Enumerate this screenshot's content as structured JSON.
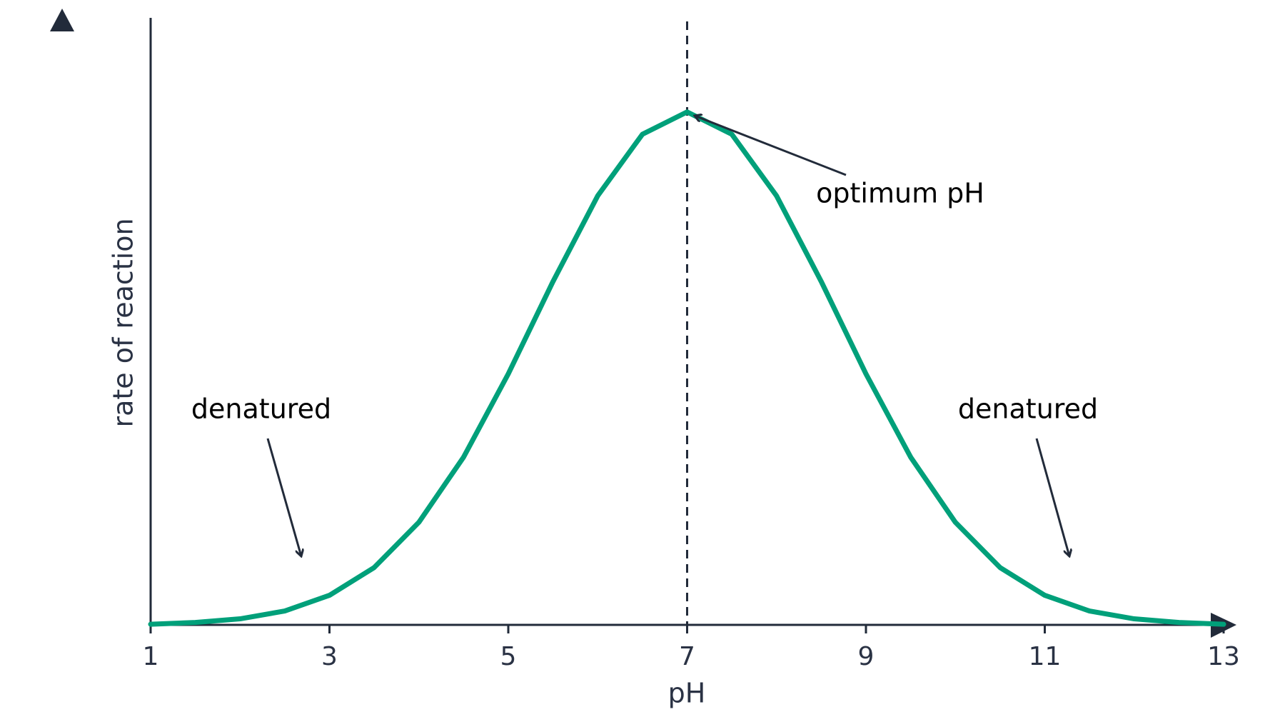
{
  "chart_data": {
    "type": "line",
    "x_label": "pH",
    "y_label": "rate of reaction",
    "x": [
      1,
      1.5,
      2,
      2.5,
      3,
      3.5,
      4,
      4.5,
      5,
      5.5,
      6,
      6.5,
      7,
      7.5,
      8,
      8.5,
      9,
      9.5,
      10,
      10.5,
      11,
      11.5,
      12,
      12.5,
      13
    ],
    "series": [
      {
        "color": "#00a07a",
        "values": [
          0.001,
          0.004,
          0.01,
          0.023,
          0.049,
          0.095,
          0.17,
          0.278,
          0.416,
          0.569,
          0.711,
          0.813,
          0.85,
          0.813,
          0.711,
          0.569,
          0.416,
          0.278,
          0.17,
          0.095,
          0.049,
          0.023,
          0.01,
          0.004,
          0.001
        ]
      }
    ],
    "xlim": [
      1,
      13
    ],
    "xticks": [
      1,
      3,
      5,
      7,
      9,
      11,
      13
    ],
    "ylim": [
      0,
      1
    ],
    "vline": 7,
    "annotations": [
      "optimum pH",
      "denatured",
      "denatured"
    ]
  }
}
